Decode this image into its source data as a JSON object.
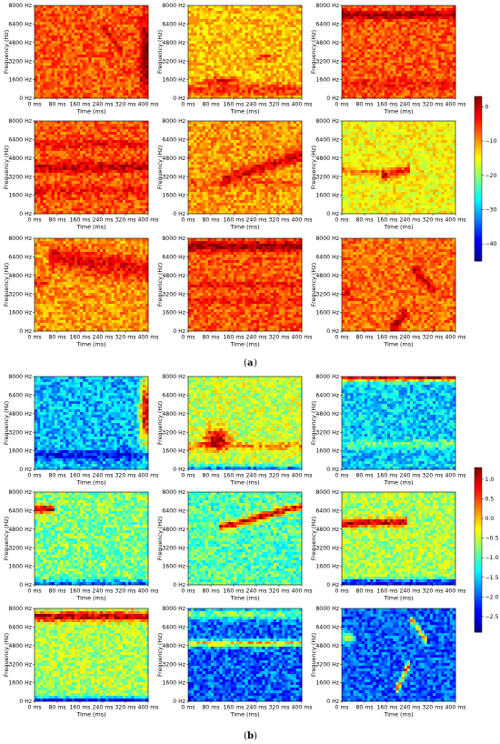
{
  "figure": {
    "captions": [
      "(a)",
      "(b)"
    ],
    "caption_letters": [
      "a",
      "b"
    ],
    "colors": {
      "jet": [
        "#00008f",
        "#0000ff",
        "#0080ff",
        "#00ffff",
        "#80ff80",
        "#ffff00",
        "#ff8000",
        "#ff0000",
        "#800000"
      ]
    }
  },
  "chart_data": [
    {
      "type": "heatmap",
      "group": "a",
      "layout": "3x3 grid of spectrograms",
      "xlabel": "Time (ms)",
      "ylabel": "Frequency (Hz)",
      "xticks": [
        "0 ms",
        "80 ms",
        "160 ms",
        "240 ms",
        "320 ms",
        "400 ms"
      ],
      "yticks": [
        "0 Hz",
        "1600 Hz",
        "3200 Hz",
        "4800 Hz",
        "6400 Hz",
        "8000 Hz"
      ],
      "xlim": [
        0,
        400
      ],
      "ylim": [
        0,
        8000
      ],
      "colorbar": {
        "ticks": [
          "0",
          "−10",
          "−20",
          "−30",
          "−40"
        ],
        "values": [
          0,
          -10,
          -20,
          -30,
          -40
        ],
        "range": [
          -45,
          3
        ]
      },
      "panels": [
        {
          "base": -7,
          "noise": 4,
          "features": [
            {
              "kind": "blob",
              "t": 390,
              "f": 3600,
              "dt": 14,
              "df": 2200,
              "amp": 12
            },
            {
              "kind": "line",
              "t0": 250,
              "f0": 6000,
              "t1": 300,
              "f1": 4200,
              "w": 300,
              "amp": 5
            }
          ]
        },
        {
          "base": -12,
          "noise": 4,
          "features": [
            {
              "kind": "band",
              "f": 700,
              "w": 350,
              "amp": 7
            },
            {
              "kind": "blob",
              "t": 120,
              "f": 1500,
              "dt": 40,
              "df": 250,
              "amp": 9
            },
            {
              "kind": "blob",
              "t": 270,
              "f": 3600,
              "dt": 30,
              "df": 250,
              "amp": 6
            }
          ]
        },
        {
          "base": -7,
          "noise": 4,
          "features": [
            {
              "kind": "band",
              "f": 7200,
              "w": 250,
              "amp": 10
            },
            {
              "kind": "band",
              "f": 1200,
              "w": 300,
              "amp": 3
            }
          ]
        },
        {
          "base": -7,
          "noise": 4,
          "features": [
            {
              "kind": "band",
              "f": 4000,
              "w": 300,
              "amp": 7
            },
            {
              "kind": "band",
              "f": 6000,
              "w": 250,
              "amp": 4
            },
            {
              "kind": "band",
              "f": 2000,
              "w": 300,
              "amp": 4
            }
          ]
        },
        {
          "base": -10,
          "noise": 4,
          "features": [
            {
              "kind": "line",
              "t0": 130,
              "f0": 3000,
              "t1": 400,
              "f1": 5000,
              "w": 350,
              "amp": 9
            },
            {
              "kind": "band",
              "f": 2600,
              "w": 250,
              "amp": 3
            }
          ]
        },
        {
          "base": -15,
          "noise": 4,
          "features": [
            {
              "kind": "line",
              "t0": 0,
              "f0": 3800,
              "t1": 150,
              "f1": 3400,
              "w": 250,
              "amp": 6
            },
            {
              "kind": "line",
              "t0": 150,
              "f0": 3300,
              "t1": 230,
              "f1": 3800,
              "w": 300,
              "amp": 11
            }
          ]
        },
        {
          "base": -10,
          "noise": 4,
          "features": [
            {
              "kind": "line",
              "t0": 60,
              "f0": 6400,
              "t1": 400,
              "f1": 5200,
              "w": 700,
              "amp": 8
            },
            {
              "kind": "blob",
              "t": 20,
              "f": 4200,
              "dt": 20,
              "df": 300,
              "amp": 7
            }
          ]
        },
        {
          "base": -7,
          "noise": 4,
          "features": [
            {
              "kind": "band",
              "f": 7300,
              "w": 300,
              "amp": 10
            },
            {
              "kind": "band",
              "f": 4000,
              "w": 200,
              "amp": 4
            },
            {
              "kind": "band",
              "f": 2600,
              "w": 200,
              "amp": 3
            }
          ]
        },
        {
          "base": -8,
          "noise": 4,
          "features": [
            {
              "kind": "line",
              "t0": 180,
              "f0": 300,
              "t1": 220,
              "f1": 1500,
              "w": 350,
              "amp": 9
            },
            {
              "kind": "line",
              "t0": 260,
              "f0": 5200,
              "t1": 320,
              "f1": 3600,
              "w": 300,
              "amp": 8
            },
            {
              "kind": "blob",
              "t": 15,
              "f": 3200,
              "dt": 15,
              "df": 400,
              "amp": 6
            }
          ]
        }
      ]
    },
    {
      "type": "heatmap",
      "group": "b",
      "layout": "3x3 grid of spectrograms",
      "xlabel": "Time (ms)",
      "ylabel": "Frequency (Hz)",
      "xticks": [
        "0 ms",
        "80 ms",
        "160 ms",
        "240 ms",
        "320 ms",
        "400 ms"
      ],
      "yticks": [
        "0 Hz",
        "1600 Hz",
        "3200 Hz",
        "4800 Hz",
        "6400 Hz",
        "8000 Hz"
      ],
      "xlim": [
        0,
        400
      ],
      "ylim": [
        0,
        8000
      ],
      "colorbar": {
        "ticks": [
          "1.0",
          "0.5",
          "0.0",
          "−0.5",
          "−1.0",
          "−1.5",
          "−2.0",
          "−2.5"
        ],
        "values": [
          1.0,
          0.5,
          0.0,
          -0.5,
          -1.0,
          -1.5,
          -2.0,
          -2.5
        ],
        "range": [
          -2.9,
          1.3
        ]
      },
      "panels": [
        {
          "base": -1.6,
          "noise": 0.5,
          "features": [
            {
              "kind": "blob",
              "t": 390,
              "f": 5000,
              "dt": 14,
              "df": 2200,
              "amp": 2.6
            },
            {
              "kind": "band",
              "f": 1200,
              "w": 300,
              "amp": -0.8
            }
          ]
        },
        {
          "base": -0.5,
          "noise": 0.45,
          "features": [
            {
              "kind": "blob",
              "t": 100,
              "f": 2700,
              "dt": 30,
              "df": 600,
              "amp": 1.7
            },
            {
              "kind": "band",
              "f": 2000,
              "w": 250,
              "amp": 0.6
            },
            {
              "kind": "band",
              "f": 0,
              "w": 250,
              "amp": -1.4
            }
          ]
        },
        {
          "base": -1.5,
          "noise": 0.5,
          "features": [
            {
              "kind": "band",
              "f": 7900,
              "w": 250,
              "amp": 2.3
            },
            {
              "kind": "band",
              "f": 2200,
              "w": 250,
              "amp": 0.6
            }
          ]
        },
        {
          "base": -0.8,
          "noise": 0.5,
          "features": [
            {
              "kind": "line",
              "t0": 0,
              "f0": 6500,
              "t1": 60,
              "f1": 6500,
              "w": 250,
              "amp": 2.0
            },
            {
              "kind": "band",
              "f": 0,
              "w": 300,
              "amp": -1.2
            }
          ]
        },
        {
          "base": -1.0,
          "noise": 0.5,
          "features": [
            {
              "kind": "line",
              "t0": 120,
              "f0": 5000,
              "t1": 400,
              "f1": 6800,
              "w": 250,
              "amp": 2.0
            }
          ]
        },
        {
          "base": -0.6,
          "noise": 0.45,
          "features": [
            {
              "kind": "line",
              "t0": 0,
              "f0": 5300,
              "t1": 220,
              "f1": 5400,
              "w": 250,
              "amp": 1.7
            },
            {
              "kind": "band",
              "f": 150,
              "w": 250,
              "amp": -1.8
            }
          ]
        },
        {
          "base": -0.6,
          "noise": 0.45,
          "features": [
            {
              "kind": "band",
              "f": 7300,
              "w": 300,
              "amp": 1.7
            },
            {
              "kind": "band",
              "f": 0,
              "w": 250,
              "amp": -1.8
            }
          ]
        },
        {
          "base": -2.0,
          "noise": 0.5,
          "features": [
            {
              "kind": "band",
              "f": 7500,
              "w": 300,
              "amp": 1.2
            },
            {
              "kind": "band",
              "f": 5000,
              "w": 200,
              "amp": 2.0
            }
          ]
        },
        {
          "base": -2.0,
          "noise": 0.45,
          "features": [
            {
              "kind": "line",
              "t0": 200,
              "f0": 1200,
              "t1": 230,
              "f1": 3000,
              "w": 300,
              "amp": 2.4
            },
            {
              "kind": "line",
              "t0": 250,
              "f0": 7000,
              "t1": 290,
              "f1": 5400,
              "w": 250,
              "amp": 2.0
            },
            {
              "kind": "blob",
              "t": 20,
              "f": 5500,
              "dt": 15,
              "df": 300,
              "amp": 1.8
            }
          ]
        }
      ]
    }
  ]
}
